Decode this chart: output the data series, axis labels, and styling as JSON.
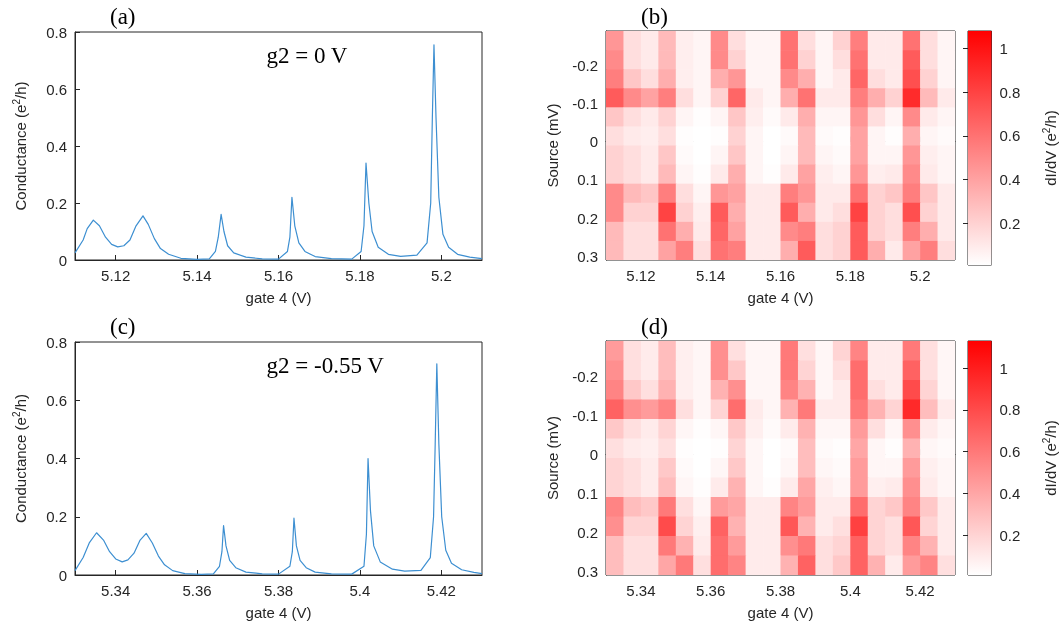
{
  "chart_data": [
    {
      "type": "line",
      "title": "(a)",
      "xlabel": "gate 4 (V)",
      "ylabel": "Conductance (e$^{2}$/h)",
      "annotations": [
        "g2 = 0 V"
      ],
      "color": "#3d8fd1",
      "xlim": [
        5.11,
        5.21
      ],
      "xticks": [
        5.12,
        5.14,
        5.16,
        5.18,
        5.2
      ],
      "ylim": [
        0,
        0.8
      ],
      "yticks": [
        0,
        0.2,
        0.4,
        0.6,
        0.8
      ],
      "x": [
        5.11,
        5.112,
        5.113,
        5.1145,
        5.116,
        5.1175,
        5.119,
        5.1205,
        5.122,
        5.1235,
        5.125,
        5.1267,
        5.128,
        5.1295,
        5.131,
        5.133,
        5.136,
        5.14,
        5.143,
        5.1445,
        5.1452,
        5.1459,
        5.1466,
        5.1475,
        5.149,
        5.152,
        5.156,
        5.16,
        5.1622,
        5.1628,
        5.1633,
        5.164,
        5.165,
        5.1665,
        5.169,
        5.173,
        5.178,
        5.1803,
        5.181,
        5.1815,
        5.1822,
        5.183,
        5.1845,
        5.187,
        5.19,
        5.194,
        5.1965,
        5.1974,
        5.1978,
        5.1982,
        5.1987,
        5.1994,
        5.2004,
        5.2018,
        5.204,
        5.207,
        5.21
      ],
      "values": [
        0.025,
        0.07,
        0.11,
        0.14,
        0.12,
        0.08,
        0.055,
        0.046,
        0.05,
        0.07,
        0.12,
        0.155,
        0.125,
        0.075,
        0.04,
        0.02,
        0.006,
        0.002,
        0.004,
        0.03,
        0.08,
        0.16,
        0.1,
        0.05,
        0.025,
        0.01,
        0.004,
        0.003,
        0.03,
        0.08,
        0.22,
        0.12,
        0.06,
        0.03,
        0.012,
        0.005,
        0.003,
        0.03,
        0.12,
        0.34,
        0.2,
        0.1,
        0.045,
        0.02,
        0.013,
        0.017,
        0.06,
        0.2,
        0.5,
        0.755,
        0.5,
        0.22,
        0.09,
        0.045,
        0.02,
        0.01,
        0.005
      ]
    },
    {
      "type": "heatmap",
      "title": "(b)",
      "xlabel": "gate 4 (V)",
      "ylabel": "Source (mV)",
      "clabel": "dI/dV (e$^{2}$/h)",
      "color": "#ff0000",
      "xlim": [
        5.11,
        5.21
      ],
      "xticks": [
        5.12,
        5.14,
        5.16,
        5.18,
        5.2
      ],
      "ylim": [
        0.31,
        -0.29
      ],
      "yticks": [
        -0.2,
        -0.1,
        0,
        0.1,
        0.2,
        0.3
      ],
      "clim": [
        0.01,
        1.08
      ],
      "cticks": [
        0.2,
        0.4,
        0.6,
        0.8,
        1
      ],
      "cells": [
        [
          0.45,
          0.15,
          0.1,
          0.3,
          0.08,
          0.05,
          0.5,
          0.15,
          0.05,
          0.05,
          0.6,
          0.15,
          0.05,
          0.2,
          0.55,
          0.1,
          0.1,
          0.6,
          0.15,
          0.05
        ],
        [
          0.5,
          0.15,
          0.1,
          0.3,
          0.08,
          0.05,
          0.5,
          0.2,
          0.05,
          0.05,
          0.6,
          0.2,
          0.05,
          0.15,
          0.6,
          0.1,
          0.1,
          0.7,
          0.15,
          0.05
        ],
        [
          0.55,
          0.25,
          0.15,
          0.35,
          0.08,
          0.05,
          0.35,
          0.45,
          0.05,
          0.05,
          0.5,
          0.35,
          0.05,
          0.1,
          0.65,
          0.15,
          0.1,
          0.75,
          0.2,
          0.05
        ],
        [
          0.7,
          0.5,
          0.4,
          0.55,
          0.15,
          0.05,
          0.2,
          0.65,
          0.1,
          0.05,
          0.35,
          0.6,
          0.1,
          0.1,
          0.55,
          0.35,
          0.2,
          0.9,
          0.3,
          0.1
        ],
        [
          0.25,
          0.15,
          0.1,
          0.2,
          0.05,
          0.02,
          0.05,
          0.25,
          0.08,
          0.03,
          0.1,
          0.35,
          0.05,
          0.05,
          0.45,
          0.15,
          0.05,
          0.5,
          0.1,
          0.05
        ],
        [
          0.15,
          0.1,
          0.08,
          0.15,
          0.02,
          0.01,
          0.02,
          0.2,
          0.05,
          0.01,
          0.03,
          0.3,
          0.03,
          0.02,
          0.4,
          0.05,
          0.02,
          0.35,
          0.05,
          0.03
        ],
        [
          0.2,
          0.15,
          0.1,
          0.25,
          0.03,
          0.01,
          0.05,
          0.25,
          0.05,
          0.01,
          0.05,
          0.3,
          0.05,
          0.03,
          0.4,
          0.05,
          0.05,
          0.45,
          0.08,
          0.05
        ],
        [
          0.2,
          0.15,
          0.1,
          0.3,
          0.05,
          0.02,
          0.1,
          0.35,
          0.05,
          0.02,
          0.1,
          0.4,
          0.08,
          0.05,
          0.45,
          0.08,
          0.1,
          0.5,
          0.1,
          0.05
        ],
        [
          0.5,
          0.3,
          0.25,
          0.55,
          0.15,
          0.05,
          0.45,
          0.4,
          0.1,
          0.1,
          0.55,
          0.45,
          0.1,
          0.1,
          0.6,
          0.2,
          0.25,
          0.55,
          0.25,
          0.1
        ],
        [
          0.5,
          0.2,
          0.2,
          0.8,
          0.2,
          0.08,
          0.7,
          0.35,
          0.1,
          0.1,
          0.7,
          0.35,
          0.1,
          0.15,
          0.8,
          0.2,
          0.15,
          0.75,
          0.2,
          0.1
        ],
        [
          0.3,
          0.15,
          0.15,
          0.6,
          0.35,
          0.1,
          0.65,
          0.4,
          0.1,
          0.1,
          0.5,
          0.55,
          0.15,
          0.2,
          0.7,
          0.2,
          0.15,
          0.55,
          0.35,
          0.1
        ],
        [
          0.3,
          0.15,
          0.15,
          0.4,
          0.55,
          0.15,
          0.6,
          0.55,
          0.1,
          0.1,
          0.35,
          0.7,
          0.15,
          0.2,
          0.7,
          0.35,
          0.1,
          0.4,
          0.55,
          0.15
        ]
      ]
    },
    {
      "type": "line",
      "title": "(c)",
      "xlabel": "gate 4 (V)",
      "ylabel": "Conductance (e$^{2}$/h)",
      "annotations": [
        "g2 = -0.55 V"
      ],
      "color": "#3d8fd1",
      "xlim": [
        5.33,
        5.43
      ],
      "xticks": [
        5.34,
        5.36,
        5.38,
        5.4,
        5.42
      ],
      "ylim": [
        0,
        0.8
      ],
      "yticks": [
        0,
        0.2,
        0.4,
        0.6,
        0.8
      ],
      "x": [
        5.33,
        5.332,
        5.3335,
        5.3353,
        5.337,
        5.3385,
        5.34,
        5.3416,
        5.343,
        5.3445,
        5.346,
        5.3475,
        5.349,
        5.3505,
        5.352,
        5.354,
        5.357,
        5.361,
        5.364,
        5.3655,
        5.3661,
        5.3665,
        5.3671,
        5.368,
        5.3695,
        5.372,
        5.376,
        5.38,
        5.3828,
        5.3834,
        5.3838,
        5.3844,
        5.3853,
        5.3868,
        5.389,
        5.393,
        5.398,
        5.401,
        5.4016,
        5.402,
        5.4026,
        5.4034,
        5.405,
        5.408,
        5.411,
        5.415,
        5.4173,
        5.4181,
        5.4185,
        5.4189,
        5.4194,
        5.4201,
        5.4211,
        5.4225,
        5.425,
        5.428,
        5.43
      ],
      "values": [
        0.015,
        0.06,
        0.11,
        0.145,
        0.12,
        0.08,
        0.055,
        0.045,
        0.052,
        0.075,
        0.12,
        0.143,
        0.11,
        0.065,
        0.035,
        0.015,
        0.005,
        0.002,
        0.004,
        0.03,
        0.08,
        0.17,
        0.1,
        0.05,
        0.025,
        0.01,
        0.004,
        0.003,
        0.03,
        0.08,
        0.195,
        0.1,
        0.05,
        0.025,
        0.01,
        0.004,
        0.003,
        0.03,
        0.14,
        0.4,
        0.22,
        0.1,
        0.045,
        0.02,
        0.013,
        0.016,
        0.06,
        0.2,
        0.45,
        0.725,
        0.45,
        0.2,
        0.085,
        0.04,
        0.018,
        0.009,
        0.005
      ]
    },
    {
      "type": "heatmap",
      "title": "(d)",
      "xlabel": "gate 4 (V)",
      "ylabel": "Source (mV)",
      "clabel": "dI/dV (e$^{2}$/h)",
      "color": "#ff0000",
      "xlim": [
        5.33,
        5.43
      ],
      "xticks": [
        5.34,
        5.36,
        5.38,
        5.4,
        5.42
      ],
      "ylim": [
        0.31,
        -0.29
      ],
      "yticks": [
        -0.2,
        -0.1,
        0,
        0.1,
        0.2,
        0.3
      ],
      "clim": [
        0.01,
        1.13
      ],
      "cticks": [
        0.2,
        0.4,
        0.6,
        0.8,
        1
      ],
      "cells": [
        [
          0.45,
          0.15,
          0.1,
          0.3,
          0.08,
          0.05,
          0.5,
          0.15,
          0.05,
          0.05,
          0.6,
          0.15,
          0.05,
          0.2,
          0.55,
          0.1,
          0.1,
          0.6,
          0.15,
          0.05
        ],
        [
          0.5,
          0.15,
          0.1,
          0.3,
          0.08,
          0.05,
          0.5,
          0.25,
          0.05,
          0.05,
          0.6,
          0.2,
          0.05,
          0.15,
          0.65,
          0.1,
          0.1,
          0.7,
          0.15,
          0.05
        ],
        [
          0.55,
          0.25,
          0.15,
          0.35,
          0.08,
          0.05,
          0.35,
          0.5,
          0.05,
          0.05,
          0.55,
          0.35,
          0.05,
          0.1,
          0.65,
          0.15,
          0.1,
          0.8,
          0.2,
          0.05
        ],
        [
          0.7,
          0.5,
          0.45,
          0.55,
          0.15,
          0.05,
          0.2,
          0.65,
          0.1,
          0.05,
          0.35,
          0.6,
          0.1,
          0.1,
          0.6,
          0.35,
          0.2,
          0.95,
          0.3,
          0.1
        ],
        [
          0.25,
          0.15,
          0.1,
          0.2,
          0.05,
          0.02,
          0.05,
          0.25,
          0.08,
          0.03,
          0.1,
          0.35,
          0.05,
          0.05,
          0.45,
          0.15,
          0.05,
          0.5,
          0.1,
          0.05
        ],
        [
          0.15,
          0.1,
          0.08,
          0.15,
          0.02,
          0.01,
          0.02,
          0.2,
          0.05,
          0.01,
          0.03,
          0.3,
          0.03,
          0.02,
          0.4,
          0.05,
          0.02,
          0.35,
          0.05,
          0.03
        ],
        [
          0.2,
          0.15,
          0.1,
          0.25,
          0.03,
          0.01,
          0.05,
          0.25,
          0.05,
          0.01,
          0.05,
          0.3,
          0.05,
          0.03,
          0.45,
          0.05,
          0.05,
          0.45,
          0.08,
          0.05
        ],
        [
          0.2,
          0.15,
          0.1,
          0.3,
          0.05,
          0.02,
          0.1,
          0.35,
          0.05,
          0.02,
          0.1,
          0.4,
          0.08,
          0.05,
          0.45,
          0.08,
          0.1,
          0.5,
          0.1,
          0.05
        ],
        [
          0.55,
          0.3,
          0.25,
          0.6,
          0.15,
          0.05,
          0.45,
          0.4,
          0.1,
          0.1,
          0.55,
          0.45,
          0.1,
          0.1,
          0.65,
          0.2,
          0.25,
          0.55,
          0.25,
          0.1
        ],
        [
          0.5,
          0.2,
          0.2,
          0.8,
          0.2,
          0.08,
          0.7,
          0.35,
          0.1,
          0.1,
          0.75,
          0.35,
          0.1,
          0.15,
          0.85,
          0.2,
          0.15,
          0.75,
          0.2,
          0.1
        ],
        [
          0.3,
          0.15,
          0.15,
          0.6,
          0.35,
          0.1,
          0.65,
          0.45,
          0.1,
          0.1,
          0.5,
          0.6,
          0.15,
          0.2,
          0.7,
          0.2,
          0.15,
          0.55,
          0.35,
          0.1
        ],
        [
          0.3,
          0.15,
          0.15,
          0.4,
          0.6,
          0.15,
          0.65,
          0.55,
          0.1,
          0.1,
          0.35,
          0.7,
          0.15,
          0.25,
          0.7,
          0.35,
          0.1,
          0.45,
          0.55,
          0.15
        ]
      ]
    }
  ]
}
